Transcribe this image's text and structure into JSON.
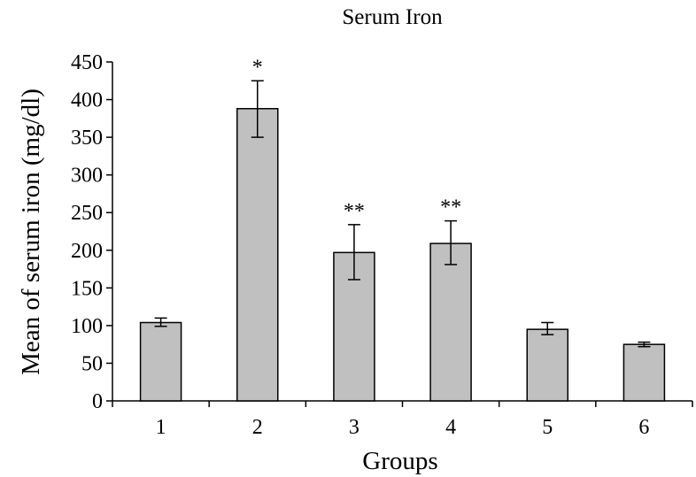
{
  "chart_data": {
    "type": "bar",
    "title": "Serum Iron",
    "xlabel": "Groups",
    "ylabel": "Mean of serum iron (mg/dl)",
    "categories": [
      "1",
      "2",
      "3",
      "4",
      "5",
      "6"
    ],
    "values": [
      104,
      388,
      197,
      209,
      95,
      75
    ],
    "error_low": [
      99,
      350,
      161,
      181,
      88,
      72
    ],
    "error_high": [
      110,
      425,
      234,
      239,
      104,
      78
    ],
    "annotations": [
      "",
      "*",
      "**",
      "**",
      "",
      ""
    ],
    "ylim": [
      0,
      450
    ],
    "yticks": [
      0,
      50,
      100,
      150,
      200,
      250,
      300,
      350,
      400,
      450
    ],
    "grid": false,
    "bar_color": "#c0c0c0"
  }
}
